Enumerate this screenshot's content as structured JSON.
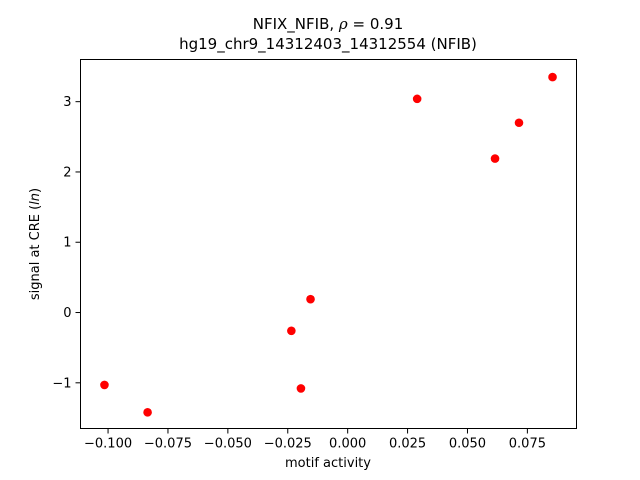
{
  "chart_data": {
    "type": "scatter",
    "title_line1_prefix": "NFIX_NFIB, ",
    "title_rho_symbol": "ρ",
    "title_rho_value": " = 0.91",
    "title_line2": "hg19_chr9_14312403_14312554 (NFIB)",
    "xlabel": "motif activity",
    "ylabel_prefix": "signal at CRE (",
    "ylabel_italic": "ln",
    "ylabel_suffix": ")",
    "xlim": [
      -0.1115,
      0.0955
    ],
    "ylim": [
      -1.65,
      3.6
    ],
    "xticks": [
      -0.1,
      -0.075,
      -0.05,
      -0.025,
      0.0,
      0.025,
      0.05,
      0.075
    ],
    "xtick_labels": [
      "−0.100",
      "−0.075",
      "−0.050",
      "−0.025",
      "0.000",
      "0.025",
      "0.050",
      "0.075"
    ],
    "yticks": [
      -1,
      0,
      1,
      2,
      3
    ],
    "ytick_labels": [
      "−1",
      "0",
      "1",
      "2",
      "3"
    ],
    "marker_color": "#ff0000",
    "grid": false,
    "points": [
      {
        "x": -0.1015,
        "y": -1.03
      },
      {
        "x": -0.0835,
        "y": -1.42
      },
      {
        "x": -0.0235,
        "y": -0.26
      },
      {
        "x": -0.0195,
        "y": -1.08
      },
      {
        "x": -0.0155,
        "y": 0.19
      },
      {
        "x": 0.029,
        "y": 3.04
      },
      {
        "x": 0.0615,
        "y": 2.19
      },
      {
        "x": 0.0715,
        "y": 2.7
      },
      {
        "x": 0.0855,
        "y": 3.35
      }
    ]
  }
}
